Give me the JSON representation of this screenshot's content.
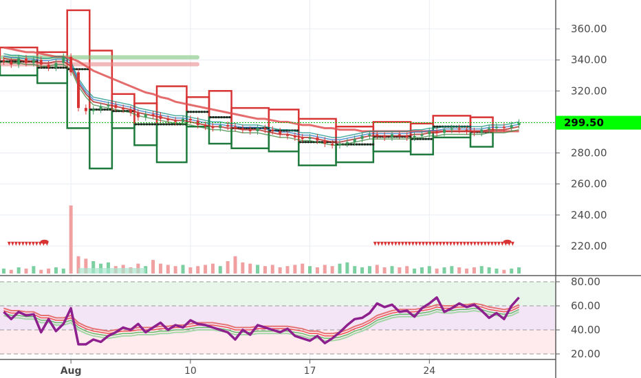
{
  "colors": {
    "up": "#1e7a3c",
    "down": "#d83434",
    "bull_fill": "#3a9a5c",
    "ma_red": "#e05252",
    "ma_dark": "#b02a2a",
    "rsi_line": "#8e1f8e",
    "rsi_band_green": "#4caf50",
    "rsi_band_red": "#e53935",
    "current_price_bg": "#00ff00",
    "grid": "#e8edf3"
  },
  "chart_data": [
    {
      "type": "candlestick",
      "pane": "price",
      "yaxis": {
        "ticks": [
          220,
          240,
          260,
          280,
          300,
          320,
          340,
          360
        ],
        "range": [
          204,
          374
        ]
      },
      "current_price": "299.50",
      "x_ticks": [
        {
          "label": "Aug",
          "index": 9,
          "bold": true
        },
        {
          "label": "10",
          "index": 25,
          "bold": false
        },
        {
          "label": "17",
          "index": 41,
          "bold": false
        },
        {
          "label": "24",
          "index": 57,
          "bold": false
        }
      ],
      "bar_count": 70,
      "closes": [
        339,
        337,
        341,
        338,
        340,
        337,
        335,
        338,
        342,
        332,
        309,
        307,
        308,
        310,
        311,
        309,
        308,
        306,
        303,
        305,
        304,
        302,
        301,
        300,
        302,
        301,
        298,
        297,
        296,
        298,
        297,
        296,
        295,
        294,
        296,
        295,
        294,
        292,
        291,
        290,
        289,
        290,
        288,
        286,
        285,
        286,
        287,
        289,
        291,
        292,
        291,
        290,
        292,
        291,
        290,
        291,
        292,
        294,
        293,
        295,
        296,
        295,
        294,
        293,
        295,
        296,
        297,
        296,
        298,
        299.5
      ],
      "box_levels": [
        {
          "from": 0,
          "to": 5,
          "high": 348,
          "low": 330
        },
        {
          "from": 5,
          "to": 9,
          "high": 345,
          "low": 325
        },
        {
          "from": 9,
          "to": 12,
          "high": 372,
          "low": 296
        },
        {
          "from": 12,
          "to": 15,
          "high": 346,
          "low": 270
        },
        {
          "from": 15,
          "to": 18,
          "high": 318,
          "low": 296
        },
        {
          "from": 18,
          "to": 21,
          "high": 312,
          "low": 285
        },
        {
          "from": 21,
          "to": 25,
          "high": 323,
          "low": 274
        },
        {
          "from": 25,
          "to": 28,
          "high": 316,
          "low": 297
        },
        {
          "from": 28,
          "to": 31,
          "high": 320,
          "low": 286
        },
        {
          "from": 31,
          "to": 36,
          "high": 309,
          "low": 283
        },
        {
          "from": 36,
          "to": 40,
          "high": 308,
          "low": 281
        },
        {
          "from": 40,
          "to": 45,
          "high": 302,
          "low": 272
        },
        {
          "from": 45,
          "to": 50,
          "high": 297,
          "low": 274
        },
        {
          "from": 50,
          "to": 55,
          "high": 300,
          "low": 281
        },
        {
          "from": 55,
          "to": 58,
          "high": 299,
          "low": 279
        },
        {
          "from": 58,
          "to": 63,
          "high": 304,
          "low": 290
        },
        {
          "from": 63,
          "to": 66,
          "high": 303,
          "low": 284
        }
      ],
      "ma_slow": [
        348,
        347,
        346,
        345,
        345,
        344,
        343,
        342,
        342,
        341,
        339,
        336,
        333,
        331,
        329,
        327,
        325,
        323,
        321,
        319,
        318,
        316,
        315,
        313,
        312,
        311,
        310,
        309,
        308,
        307,
        306,
        305,
        304,
        303,
        302,
        302,
        301,
        300,
        300,
        299,
        298,
        298,
        297,
        296,
        296,
        295,
        295,
        295,
        294,
        294,
        294,
        294,
        294,
        294,
        294,
        294,
        294,
        294,
        294,
        294,
        294,
        294,
        294,
        294,
        294,
        294,
        294,
        294,
        294,
        294
      ],
      "ma_fast": [
        341,
        340,
        340,
        339,
        339,
        338,
        338,
        339,
        339,
        336,
        325,
        318,
        313,
        312,
        311,
        310,
        309,
        308,
        306,
        305,
        304,
        303,
        302,
        301,
        301,
        300,
        299,
        298,
        297,
        297,
        296,
        296,
        295,
        295,
        295,
        294,
        293,
        292,
        292,
        291,
        290,
        290,
        289,
        288,
        287,
        287,
        288,
        289,
        290,
        291,
        291,
        291,
        291,
        291,
        291,
        292,
        292,
        293,
        293,
        294,
        294,
        294,
        294,
        294,
        294,
        295,
        295,
        295,
        296,
        297
      ],
      "signal_markers": [
        {
          "from": 1,
          "to": 6,
          "value": 221
        },
        {
          "from": 50,
          "to": 68,
          "value": 221
        }
      ],
      "volume": [
        4,
        3,
        5,
        4,
        6,
        3,
        4,
        5,
        4,
        55,
        14,
        12,
        10,
        8,
        9,
        6,
        7,
        5,
        8,
        6,
        11,
        8,
        7,
        6,
        7,
        5,
        6,
        7,
        8,
        6,
        10,
        14,
        9,
        8,
        7,
        6,
        7,
        5,
        6,
        7,
        8,
        6,
        5,
        7,
        6,
        8,
        9,
        6,
        5,
        6,
        7,
        5,
        6,
        5,
        6,
        4,
        5,
        6,
        4,
        5,
        6,
        5,
        4,
        5,
        6,
        5,
        4,
        3,
        4,
        5
      ]
    },
    {
      "type": "line",
      "pane": "rsi",
      "yaxis": {
        "ticks": [
          20,
          40,
          60,
          80
        ],
        "range": [
          16,
          83
        ]
      },
      "bands": [
        {
          "from": 60,
          "to": 80,
          "color": "#e8f5e9"
        },
        {
          "from": 40,
          "to": 60,
          "color": "#f3e5f5"
        },
        {
          "from": 20,
          "to": 40,
          "color": "#ffebee"
        }
      ],
      "values": [
        55,
        49,
        55,
        52,
        53,
        38,
        49,
        39,
        45,
        58,
        28,
        28,
        32,
        30,
        35,
        38,
        42,
        40,
        45,
        38,
        42,
        46,
        40,
        44,
        42,
        48,
        45,
        44,
        42,
        40,
        38,
        32,
        40,
        36,
        44,
        42,
        40,
        38,
        41,
        35,
        33,
        31,
        35,
        29,
        33,
        38,
        44,
        49,
        50,
        54,
        62,
        59,
        61,
        55,
        56,
        51,
        58,
        62,
        67,
        55,
        58,
        62,
        59,
        61,
        56,
        50,
        54,
        49,
        60,
        67
      ],
      "band_lines": [
        55,
        53,
        53,
        52,
        52,
        49,
        49,
        47,
        47,
        49,
        43,
        40,
        38,
        37,
        36,
        37,
        38,
        38,
        39,
        39,
        39,
        40,
        40,
        41,
        41,
        42,
        43,
        43,
        43,
        42,
        41,
        39,
        39,
        39,
        40,
        40,
        40,
        40,
        40,
        39,
        38,
        36,
        36,
        34,
        34,
        35,
        37,
        40,
        42,
        45,
        49,
        51,
        53,
        54,
        54,
        54,
        55,
        56,
        58,
        57,
        57,
        58,
        58,
        59,
        58,
        56,
        55,
        54,
        55,
        58
      ]
    }
  ]
}
